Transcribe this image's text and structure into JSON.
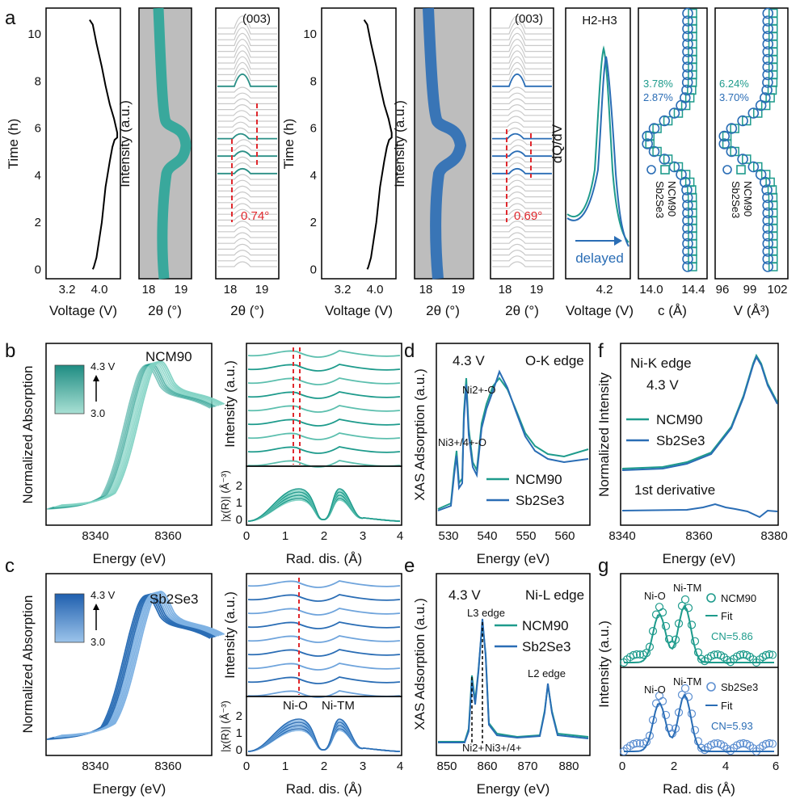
{
  "panel_labels": {
    "a": "a",
    "b": "b",
    "c": "c",
    "d": "d",
    "e": "e",
    "f": "f",
    "g": "g"
  },
  "colors": {
    "teal": "#1e9b8c",
    "teal_light": "#7fd2c3",
    "blue": "#2a6db5",
    "blue_light": "#7fb2e3",
    "red": "#e0282d",
    "gray_bg": "#bdbdbd",
    "waterfall": "#c9c9c9"
  },
  "chart_data": [
    {
      "id": "a1",
      "type": "line",
      "xlabel": "Voltage (V)",
      "ylabel": "Time (h)",
      "xticks": [
        "3.2",
        "4.0"
      ],
      "yticks": [
        "0",
        "2",
        "4",
        "6",
        "8",
        "10"
      ],
      "xlim": [
        2.9,
        4.3
      ],
      "ylim": [
        -0.4,
        11.1
      ],
      "x": [
        3.78,
        3.8,
        3.85,
        3.95,
        4.02,
        4.1,
        4.15,
        4.19,
        4.24,
        4.24,
        4.18,
        4.1,
        4.02,
        3.95,
        3.85,
        3.78,
        3.72
      ],
      "y": [
        0,
        0.1,
        0.5,
        2.0,
        3.5,
        4.6,
        5.2,
        5.5,
        5.6,
        5.8,
        6.4,
        7.0,
        7.8,
        8.6,
        9.6,
        10.4,
        10.6
      ]
    },
    {
      "id": "a2",
      "type": "heatmap",
      "xlabel": "2θ (°)",
      "ylabel": "Intensity (a.u.)",
      "xticks": [
        "18",
        "19"
      ],
      "color": "teal"
    },
    {
      "id": "a3",
      "type": "line",
      "xlabel": "2θ (°)",
      "xticks": [
        "18",
        "19"
      ],
      "annotation": "(003)",
      "shift": "0.74°"
    },
    {
      "id": "a4",
      "type": "line",
      "xlabel": "Voltage (V)",
      "ylabel": "Time (h)",
      "xticks": [
        "3.2",
        "4.0"
      ],
      "yticks": [
        "0",
        "2",
        "4",
        "6",
        "8",
        "10"
      ]
    },
    {
      "id": "a5",
      "type": "heatmap",
      "xlabel": "2θ (°)",
      "ylabel": "Intensity (a.u.)",
      "xticks": [
        "18",
        "19"
      ],
      "color": "blue"
    },
    {
      "id": "a6",
      "type": "line",
      "xlabel": "2θ (°)",
      "xticks": [
        "18",
        "19"
      ],
      "annotation": "(003)",
      "shift": "0.69°"
    },
    {
      "id": "a7",
      "type": "line",
      "xlabel": "Voltage (V)",
      "ylabel": "dQ/dV",
      "xticks": [
        "4.2"
      ],
      "title": "H2-H3",
      "annotation": "delayed",
      "series": [
        {
          "name": "NCM90",
          "peak": 4.2
        },
        {
          "name": "Sb2Se3",
          "peak": 4.23
        }
      ]
    },
    {
      "id": "a8",
      "type": "scatter",
      "xlabel": "c (Å)",
      "xticks": [
        "14.0",
        "14.4"
      ],
      "pct": [
        "3.78%",
        "2.87%"
      ],
      "legend": [
        "Sb2Se3",
        "NCM90"
      ]
    },
    {
      "id": "a9",
      "type": "scatter",
      "xlabel": "V (Å³)",
      "xticks": [
        "96",
        "99",
        "102"
      ],
      "pct": [
        "6.24%",
        "3.70%"
      ],
      "legend": [
        "Sb2Se3",
        "NCM90"
      ]
    },
    {
      "id": "b1",
      "type": "line",
      "xlabel": "Energy (eV)",
      "ylabel": "Normalized Absorption",
      "xticks": [
        "8340",
        "8360"
      ],
      "title": "NCM90",
      "cbar": [
        "4.3 V",
        "3.0"
      ]
    },
    {
      "id": "b2",
      "type": "line",
      "ylabel": "Intensity (a.u.)"
    },
    {
      "id": "b3",
      "type": "line",
      "xlabel": "Rad. dis. (Å)",
      "ylabel": "|χ(R)| (Å⁻³)",
      "xticks": [
        "0",
        "1",
        "2",
        "3",
        "4"
      ],
      "yticks": [
        "0",
        "1",
        "2"
      ]
    },
    {
      "id": "c1",
      "type": "line",
      "xlabel": "Energy (eV)",
      "ylabel": "Normalized Absorption",
      "xticks": [
        "8340",
        "8360"
      ],
      "title": "Sb2Se3",
      "cbar": [
        "4.3 V",
        "3.0"
      ]
    },
    {
      "id": "c2",
      "type": "line",
      "ylabel": "Intensity (a.u.)"
    },
    {
      "id": "c3",
      "type": "line",
      "xlabel": "Rad. dis. (Å)",
      "ylabel": "|χ(R)| (Å⁻³)",
      "xticks": [
        "0",
        "1",
        "2",
        "3",
        "4"
      ],
      "yticks": [
        "0",
        "1",
        "2"
      ],
      "labels": [
        "Ni-O",
        "Ni-TM"
      ]
    },
    {
      "id": "d",
      "type": "line",
      "xlabel": "Energy (eV)",
      "ylabel": "XAS Adsorption (a.u.)",
      "xticks": [
        "530",
        "540",
        "550",
        "560"
      ],
      "title": "4.3 V",
      "subtitle": "O-K edge",
      "labels": [
        "Ni2+-O",
        "Ni3+/4+-O"
      ],
      "legend": [
        "NCM90",
        "Sb2Se3"
      ]
    },
    {
      "id": "e",
      "type": "line",
      "xlabel": "Energy (eV)",
      "ylabel": "XAS Adsorption (a.u.)",
      "xticks": [
        "850",
        "860",
        "870",
        "880"
      ],
      "title": "4.3 V",
      "subtitle": "Ni-L edge",
      "labels": [
        "L3 edge",
        "L2 edge",
        "Ni2+",
        "Ni3+/4+"
      ],
      "legend": [
        "NCM90",
        "Sb2Se3"
      ]
    },
    {
      "id": "f",
      "type": "line",
      "xlabel": "Energy (eV)",
      "ylabel": "Normalized Intensity",
      "xticks": [
        "8340",
        "8360",
        "8380"
      ],
      "title": "Ni-K edge",
      "subtitle": "4.3 V",
      "labels": [
        "1st derivative"
      ],
      "legend": [
        "NCM90",
        "Sb2Se3"
      ]
    },
    {
      "id": "g",
      "type": "scatter",
      "xlabel": "Rad. dis (Å)",
      "ylabel": "Intensity (a.u.)",
      "xticks": [
        "0",
        "2",
        "4",
        "6"
      ],
      "series": [
        {
          "name": "NCM90",
          "cn": "CN=5.86"
        },
        {
          "name": "Sb2Se3",
          "cn": "CN=5.93"
        }
      ],
      "labels": [
        "Ni-O",
        "Ni-TM"
      ],
      "fit": "Fit"
    }
  ],
  "text": {
    "time": "Time (h)",
    "voltage": "Voltage (V)",
    "two_theta": "2θ (°)",
    "intensity": "Intensity (a.u.)",
    "ooo3": "(003)",
    "deg074": "0.74°",
    "deg069": "0.69°",
    "h2h3": "H2-H3",
    "dqdv": "dQ/dV",
    "delayed": "delayed",
    "c_ang": "c (Å)",
    "v_ang": "V (Å³)",
    "p378": "3.78%",
    "p287": "2.87%",
    "p624": "6.24%",
    "p370": "3.70%",
    "ncm90": "NCM90",
    "sb2se3": "Sb2Se3",
    "energy": "Energy (eV)",
    "norm_abs": "Normalized Absorption",
    "v43": "4.3 V",
    "v30": "3.0",
    "rad_dis": "Rad. dis. (Å)",
    "chi": "|χ(R)| (Å⁻³)",
    "xas": "XAS Adsorption (a.u.)",
    "ok_edge": "O-K edge",
    "nil_edge": "Ni-L edge",
    "nik_edge": "Ni-K edge",
    "ni2o": "Ni2+-O",
    "ni34o": "Ni3+/4+-O",
    "l3": "L3 edge",
    "l2": "L2 edge",
    "ni2": "Ni2+",
    "ni34": "Ni3+/4+",
    "norm_int": "Normalized Intensity",
    "deriv": "1st derivative",
    "nio": "Ni-O",
    "nitm": "Ni-TM",
    "fit": "Fit",
    "cn586": "CN=5.86",
    "cn593": "CN=5.93",
    "rad_dis_g": "Rad. dis (Å)"
  }
}
